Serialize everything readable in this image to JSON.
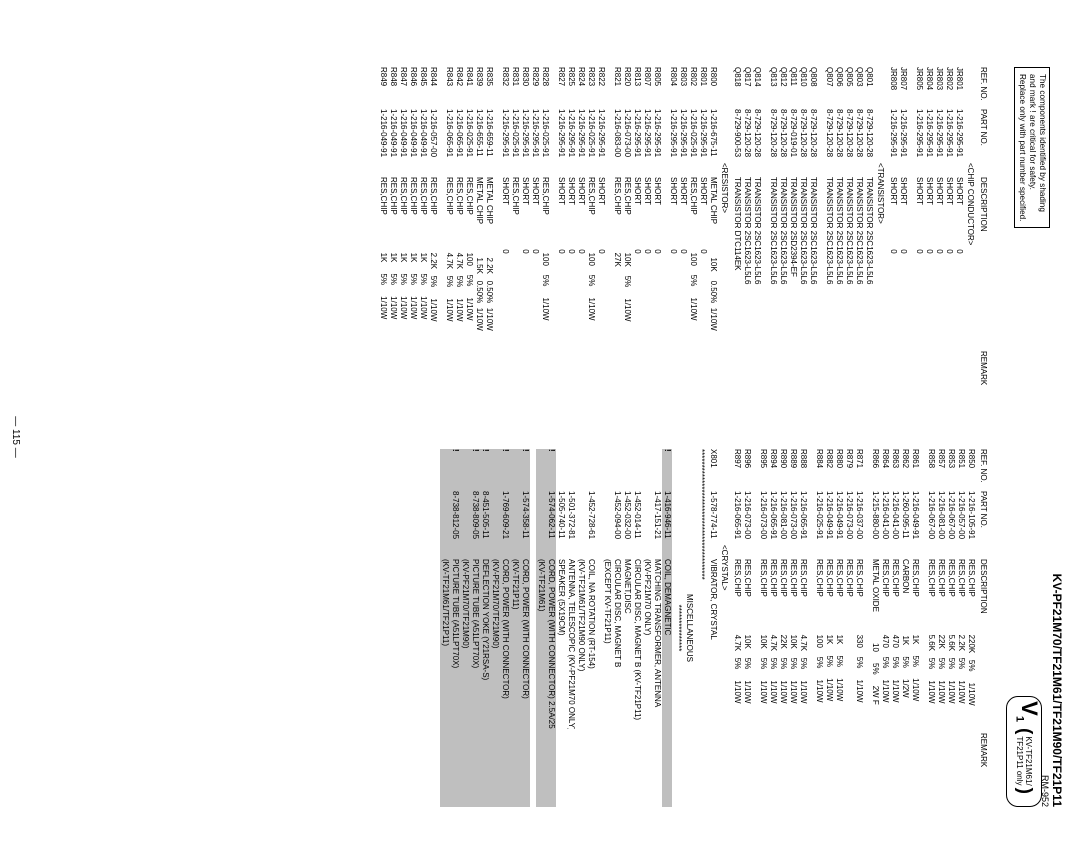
{
  "page_number": "— 115 —",
  "header": {
    "model_line": "KV-PF21M70/TF21M61/TF21M90/TF21P11",
    "rm": "RM-952"
  },
  "safety_box": {
    "l1": "The components identified by shading",
    "l2": "and mark ! are critical for safety.",
    "l3": "Replace only with part number specified."
  },
  "vbox": {
    "V": "V",
    "one": "1",
    "top": "KV-TF21M61/",
    "bottom": "TF21P11 only"
  },
  "columns_header": {
    "ref": "REF. NO.",
    "part": "PART NO.",
    "desc": "DESCRIPTION",
    "rem": "REMARK"
  },
  "sections": {
    "chip": "<CHIP CONDUCTOR>",
    "trans": "<TRANSISTOR>",
    "res": "<RESISTOR>",
    "crystal": "<CRYSTAL>",
    "stars": "******************************************",
    "misc": "MISCELLANEOUS",
    "stars2": "***************"
  },
  "col1": [
    {
      "sec": "chip"
    },
    {
      "r": "JR801",
      "p": "1-216-295-91",
      "d": "SHORT",
      "x": "0"
    },
    {
      "r": "JR802",
      "p": "1-216-295-91",
      "d": "SHORT",
      "x": "0"
    },
    {
      "r": "JR803",
      "p": "1-216-295-91",
      "d": "SHORT",
      "x": "0"
    },
    {
      "r": "JR804",
      "p": "1-216-295-91",
      "d": "SHORT",
      "x": "0"
    },
    {
      "r": "JR805",
      "p": "1-216-295-91",
      "d": "SHORT",
      "x": "0"
    },
    {
      "gap": true
    },
    {
      "r": "JR807",
      "p": "1-216-295-91",
      "d": "SHORT",
      "x": "0"
    },
    {
      "r": "JR808",
      "p": "1-216-295-91",
      "d": "SHORT",
      "x": "0"
    },
    {
      "sec": "trans"
    },
    {
      "r": "Q801",
      "p": "8-729-120-28",
      "d": "TRANSISTOR 2SC1623-L5L6"
    },
    {
      "r": "Q803",
      "p": "8-729-120-28",
      "d": "TRANSISTOR 2SC1623-L5L6"
    },
    {
      "r": "Q805",
      "p": "8-729-120-28",
      "d": "TRANSISTOR 2SC1623-L5L6"
    },
    {
      "r": "Q806",
      "p": "8-729-120-28",
      "d": "TRANSISTOR 2SC1623-L5L6"
    },
    {
      "r": "Q807",
      "p": "8-729-120-28",
      "d": "TRANSISTOR 2SC1623-L5L6"
    },
    {
      "gap": true
    },
    {
      "r": "Q808",
      "p": "8-729-120-28",
      "d": "TRANSISTOR 2SC1623-L5L6"
    },
    {
      "r": "Q810",
      "p": "8-729-120-28",
      "d": "TRANSISTOR 2SC1623-L5L6"
    },
    {
      "r": "Q811",
      "p": "8-729-019-01",
      "d": "TRANSISTOR 2SD2394-EF"
    },
    {
      "r": "Q812",
      "p": "8-729-120-28",
      "d": "TRANSISTOR 2SC1623-L5L6"
    },
    {
      "r": "Q813",
      "p": "8-729-120-28",
      "d": "TRANSISTOR 2SC1623-L5L6"
    },
    {
      "gap": true
    },
    {
      "r": "Q814",
      "p": "8-729-120-28",
      "d": "TRANSISTOR 2SC1623-L5L6"
    },
    {
      "r": "Q817",
      "p": "8-729-120-28",
      "d": "TRANSISTOR 2SC1623-L5L6"
    },
    {
      "r": "Q818",
      "p": "8-729-900-53",
      "d": "TRANSISTOR DTC114EK"
    },
    {
      "sec": "res"
    },
    {
      "r": "R800",
      "p": "1-216-675-11",
      "d": "METAL CHIP",
      "x": "10K",
      "t": "0.50%",
      "w": "1/10W"
    },
    {
      "r": "R801",
      "p": "1-216-295-91",
      "d": "SHORT",
      "x": "0"
    },
    {
      "r": "R802",
      "p": "1-216-025-91",
      "d": "RES,CHIP",
      "x": "100",
      "t": "5%",
      "w": "1/10W"
    },
    {
      "r": "R803",
      "p": "1-216-295-91",
      "d": "SHORT",
      "x": "0"
    },
    {
      "r": "R804",
      "p": "1-216-295-91",
      "d": "SHORT",
      "x": "0"
    },
    {
      "gap": true
    },
    {
      "r": "R805",
      "p": "1-216-295-91",
      "d": "SHORT",
      "x": "0"
    },
    {
      "r": "R807",
      "p": "1-216-295-91",
      "d": "SHORT",
      "x": "0"
    },
    {
      "r": "R813",
      "p": "1-216-295-91",
      "d": "SHORT",
      "x": "0"
    },
    {
      "r": "R820",
      "p": "1-216-073-00",
      "d": "RES,CHIP",
      "x": "10K",
      "t": "5%",
      "w": "1/10W"
    },
    {
      "r": "R821",
      "p": "1-216-083-00",
      "d": "RES,CHIP",
      "x": "27K"
    },
    {
      "gap": true
    },
    {
      "r": "R822",
      "p": "1-216-295-91",
      "d": "SHORT",
      "x": "0"
    },
    {
      "r": "R823",
      "p": "1-216-025-91",
      "d": "RES,CHIP",
      "x": "100",
      "t": "5%",
      "w": "1/10W"
    },
    {
      "r": "R824",
      "p": "1-216-295-91",
      "d": "SHORT",
      "x": "0"
    },
    {
      "r": "R825",
      "p": "1-216-295-91",
      "d": "SHORT",
      "x": "0"
    },
    {
      "r": "R827",
      "p": "1-216-295-91",
      "d": "SHORT",
      "x": "0"
    },
    {
      "gap": true
    },
    {
      "r": "R828",
      "p": "1-216-025-91",
      "d": "RES,CHIP",
      "x": "100",
      "t": "5%",
      "w": "1/10W"
    },
    {
      "r": "R829",
      "p": "1-216-295-91",
      "d": "SHORT",
      "x": "0"
    },
    {
      "r": "R830",
      "p": "1-216-295-91",
      "d": "SHORT",
      "x": "0"
    },
    {
      "r": "R831",
      "p": "1-216-025-91",
      "d": "RES,CHIP"
    },
    {
      "r": "R832",
      "p": "1-216-295-91",
      "d": "SHORT",
      "x": "0"
    },
    {
      "gap": true
    },
    {
      "r": "R835",
      "p": "1-216-659-11",
      "d": "METAL CHIP",
      "x": "2.2K",
      "t": "0.50%",
      "w": "1/10W"
    },
    {
      "r": "R839",
      "p": "1-216-655-11",
      "d": "METAL CHIP",
      "x": "1.5K",
      "t": "0.50%",
      "w": "1/10W"
    },
    {
      "r": "R841",
      "p": "1-216-025-91",
      "d": "RES,CHIP",
      "x": "100",
      "t": "5%",
      "w": "1/10W"
    },
    {
      "r": "R842",
      "p": "1-216-065-91",
      "d": "RES,CHIP",
      "x": "4.7K",
      "t": "5%",
      "w": "1/10W"
    },
    {
      "r": "R843",
      "p": "1-216-065-91",
      "d": "RES,CHIP",
      "x": "4.7K",
      "t": "5%",
      "w": "1/10W"
    },
    {
      "gap": true
    },
    {
      "r": "R844",
      "p": "1-216-057-00",
      "d": "RES,CHIP",
      "x": "2.2K",
      "t": "5%",
      "w": "1/10W"
    },
    {
      "r": "R845",
      "p": "1-216-049-91",
      "d": "RES,CHIP",
      "x": "1K",
      "t": "5%",
      "w": "1/10W"
    },
    {
      "r": "R846",
      "p": "1-216-049-91",
      "d": "RES,CHIP",
      "x": "1K",
      "t": "5%",
      "w": "1/10W"
    },
    {
      "r": "R847",
      "p": "1-216-049-91",
      "d": "RES,CHIP",
      "x": "1K",
      "t": "5%",
      "w": "1/10W"
    },
    {
      "r": "R848",
      "p": "1-216-049-91",
      "d": "RES,CHIP",
      "x": "1K",
      "t": "5%",
      "w": "1/10W"
    },
    {
      "r": "R849",
      "p": "1-216-049-91",
      "d": "RES,CHIP",
      "x": "1K",
      "t": "5%",
      "w": "1/10W"
    }
  ],
  "col2": [
    {
      "r": "R850",
      "p": "1-216-105-91",
      "d": "RES,CHIP",
      "x": "220K",
      "t": "5%",
      "w": "1/10W"
    },
    {
      "r": "R851",
      "p": "1-216-057-00",
      "d": "RES,CHIP",
      "x": "2.2K",
      "t": "5%",
      "w": "1/10W"
    },
    {
      "r": "R853",
      "p": "1-216-067-00",
      "d": "RES,CHIP",
      "x": "5.6K",
      "t": "5%",
      "w": "1/10W"
    },
    {
      "r": "R857",
      "p": "1-216-081-00",
      "d": "RES,CHIP",
      "x": "22K",
      "t": "5%",
      "w": "1/10W"
    },
    {
      "r": "R858",
      "p": "1-216-067-00",
      "d": "RES,CHIP",
      "x": "5.6K",
      "t": "5%",
      "w": "1/10W"
    },
    {
      "gap": true
    },
    {
      "r": "R861",
      "p": "1-216-049-91",
      "d": "RES,CHIP",
      "x": "1K",
      "t": "5%",
      "w": "1/10W"
    },
    {
      "r": "R862",
      "p": "1-260-095-11",
      "d": "CARBON",
      "x": "1K",
      "t": "5%",
      "w": "1/2W"
    },
    {
      "r": "R863",
      "p": "1-216-041-00",
      "d": "RES,CHIP",
      "x": "470",
      "t": "5%",
      "w": "1/10W"
    },
    {
      "r": "R864",
      "p": "1-216-041-00",
      "d": "RES,CHIP",
      "x": "470",
      "t": "5%",
      "w": "1/10W"
    },
    {
      "r": "R866",
      "p": "1-215-880-00",
      "d": "METAL OXIDE",
      "x": "10",
      "t": "5%",
      "w": "2W    F"
    },
    {
      "gap": true
    },
    {
      "r": "R871",
      "p": "1-216-037-00",
      "d": "RES,CHIP",
      "x": "330",
      "t": "5%",
      "w": "1/10W"
    },
    {
      "r": "R879",
      "p": "1-216-073-00",
      "d": "RES,CHIP"
    },
    {
      "r": "R880",
      "p": "1-216-049-91",
      "d": "RES,CHIP",
      "x": "1K",
      "t": "5%",
      "w": "1/10W"
    },
    {
      "r": "R882",
      "p": "1-216-049-91",
      "d": "RES,CHIP",
      "x": "1K",
      "t": "5%",
      "w": "1/10W"
    },
    {
      "r": "R884",
      "p": "1-216-025-91",
      "d": "RES,CHIP",
      "x": "100",
      "t": "5%",
      "w": "1/10W"
    },
    {
      "gap": true
    },
    {
      "r": "R888",
      "p": "1-216-065-91",
      "d": "RES,CHIP",
      "x": "4.7K",
      "t": "5%",
      "w": "1/10W"
    },
    {
      "r": "R889",
      "p": "1-216-073-00",
      "d": "RES,CHIP",
      "x": "10K",
      "t": "5%",
      "w": "1/10W"
    },
    {
      "r": "R890",
      "p": "1-216-081-00",
      "d": "RES,CHIP",
      "x": "22K",
      "t": "5%",
      "w": "1/10W"
    },
    {
      "r": "R894",
      "p": "1-216-065-91",
      "d": "RES,CHIP",
      "x": "4.7K",
      "t": "5%",
      "w": "1/10W"
    },
    {
      "r": "R895",
      "p": "1-216-073-00",
      "d": "RES,CHIP",
      "x": "10K",
      "t": "5%",
      "w": "1/10W"
    },
    {
      "gap": true
    },
    {
      "r": "R896",
      "p": "1-216-073-00",
      "d": "RES,CHIP",
      "x": "10K",
      "t": "5%",
      "w": "1/10W"
    },
    {
      "r": "R897",
      "p": "1-216-065-91",
      "d": "RES,CHIP",
      "x": "4.7K",
      "t": "5%",
      "w": "1/10W"
    },
    {
      "sec": "crystal"
    },
    {
      "r": "X801",
      "p": "1-578-774-11",
      "d": "VIBRATOR, CRYSTAL"
    },
    {
      "starblock": true
    },
    {
      "r": "",
      "p": "1-416-946-11",
      "d": "COIL, DEMAGNETIC",
      "shaded": true,
      "bang": true
    },
    {
      "r": "",
      "p": "1-417-151-21",
      "d": "MATCHING TRANSFORMER, ANTENNA"
    },
    {
      "r": "",
      "p": "",
      "d": "(KV-PF21M70 ONLY)"
    },
    {
      "r": "",
      "p": "1-452-014-11",
      "d": "CIRCULAR DISC, MAGNET B (KV-TF21P11)"
    },
    {
      "r": "",
      "p": "1-452-032-00",
      "d": "MAGNET,DISC"
    },
    {
      "r": "",
      "p": "1-452-094-00",
      "d": "CIRCULAR DISC, MAGNET B"
    },
    {
      "r": "",
      "p": "",
      "d": "(EXCEPT KV-TF21P11)"
    },
    {
      "gap": true
    },
    {
      "r": "",
      "p": "1-452-728-61",
      "d": "COIL, NA ROTATION (RT-154)"
    },
    {
      "r": "",
      "p": "",
      "d": "(KV-TF21M61/TF21M90 ONLY)"
    },
    {
      "r": "",
      "p": "1-501-372-81",
      "d": "ANTENNA, TELESCOPIC (KV-PF21M70 ONLY)"
    },
    {
      "r": "",
      "p": "1-505-740-11",
      "d": "SPEAKER (5X19CM)"
    },
    {
      "r": "",
      "p": "1-574-062-11",
      "d": "CORD, POWER (WITH CONNECTOR) 2.5A/250V",
      "shaded": true,
      "bang": true
    },
    {
      "r": "",
      "p": "",
      "d": "(KV-TF21M61)",
      "shaded": true
    },
    {
      "gap": true
    },
    {
      "r": "",
      "p": "1-574-358-11",
      "d": "CORD, POWER (WITH CONNECTOR)",
      "shaded": true,
      "bang": true
    },
    {
      "r": "",
      "p": "",
      "d": "(KV-TF21P11)",
      "shaded": true
    },
    {
      "r": "",
      "p": "1-769-609-21",
      "d": "CORD, POWER (WITH CONNECTOR)",
      "shaded": true,
      "bang": true
    },
    {
      "r": "",
      "p": "",
      "d": "(KV-PF21M70/TF21M90)",
      "shaded": true
    },
    {
      "r": "",
      "p": "8-451-505-11",
      "d": "DEFLECTION YOKE (Y21RSA-S)",
      "shaded": true,
      "bang": true
    },
    {
      "r": "",
      "p": "8-738-809-05",
      "d": "PICTURE TUBE (A51LPT70X)",
      "shaded": true,
      "bang": true
    },
    {
      "r": "",
      "p": "",
      "d": "(KV-PF21M70/TF21M90)",
      "shaded": true
    },
    {
      "r": "",
      "p": "8-738-812-05",
      "d": "PICTURE TUBE (A51LPT70X)",
      "shaded": true,
      "bang": true
    },
    {
      "r": "",
      "p": "",
      "d": "(KV-TF21M61/TF21P11)",
      "shaded": true
    }
  ]
}
